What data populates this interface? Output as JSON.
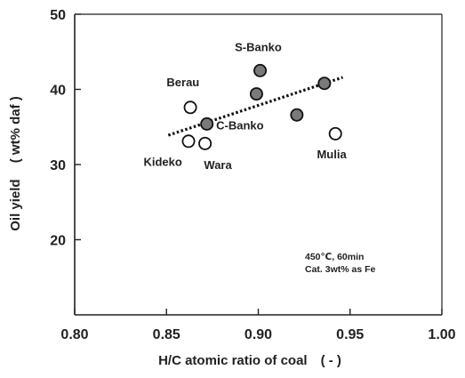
{
  "chart_data": {
    "type": "scatter",
    "xlabel": "H/C atomic ratio of coal ( - )",
    "ylabel_main": "Oil yield",
    "ylabel_unit": "( wt% daf )",
    "xlim": [
      0.8,
      1.0
    ],
    "ylim": [
      10,
      50
    ],
    "x_ticks": [
      "0.80",
      "0.85",
      "0.90",
      "0.95",
      "1.00"
    ],
    "y_ticks": [
      "20",
      "30",
      "40",
      "50"
    ],
    "grid": false,
    "series": [
      {
        "marker": "filled-circle",
        "color": "#7a7a7a",
        "points": [
          {
            "x": 0.872,
            "y": 35.4
          },
          {
            "x": 0.899,
            "y": 39.4
          },
          {
            "x": 0.901,
            "y": 42.5
          },
          {
            "x": 0.921,
            "y": 36.6
          },
          {
            "x": 0.936,
            "y": 40.8
          }
        ]
      },
      {
        "marker": "open-circle",
        "color": "#ffffff",
        "points": [
          {
            "x": 0.863,
            "y": 37.6
          },
          {
            "x": 0.862,
            "y": 33.1
          },
          {
            "x": 0.871,
            "y": 32.8
          },
          {
            "x": 0.942,
            "y": 34.1
          }
        ]
      }
    ],
    "trendline": {
      "x0": 0.851,
      "y0": 33.9,
      "x1": 0.946,
      "y1": 41.6,
      "style": "dotted"
    },
    "annotations": [
      {
        "text": "S-Banko",
        "x": 0.9,
        "y": 45.1
      },
      {
        "text": "Berau",
        "x": 0.859,
        "y": 40.4
      },
      {
        "text": "C-Banko",
        "x": 0.89,
        "y": 34.7
      },
      {
        "text": "Kideko",
        "x": 0.848,
        "y": 29.8
      },
      {
        "text": "Wara",
        "x": 0.878,
        "y": 29.4
      },
      {
        "text": "Mulia",
        "x": 0.94,
        "y": 30.8
      }
    ],
    "conditions": [
      "450℃, 60min",
      "Cat. 3wt% as Fe"
    ]
  }
}
